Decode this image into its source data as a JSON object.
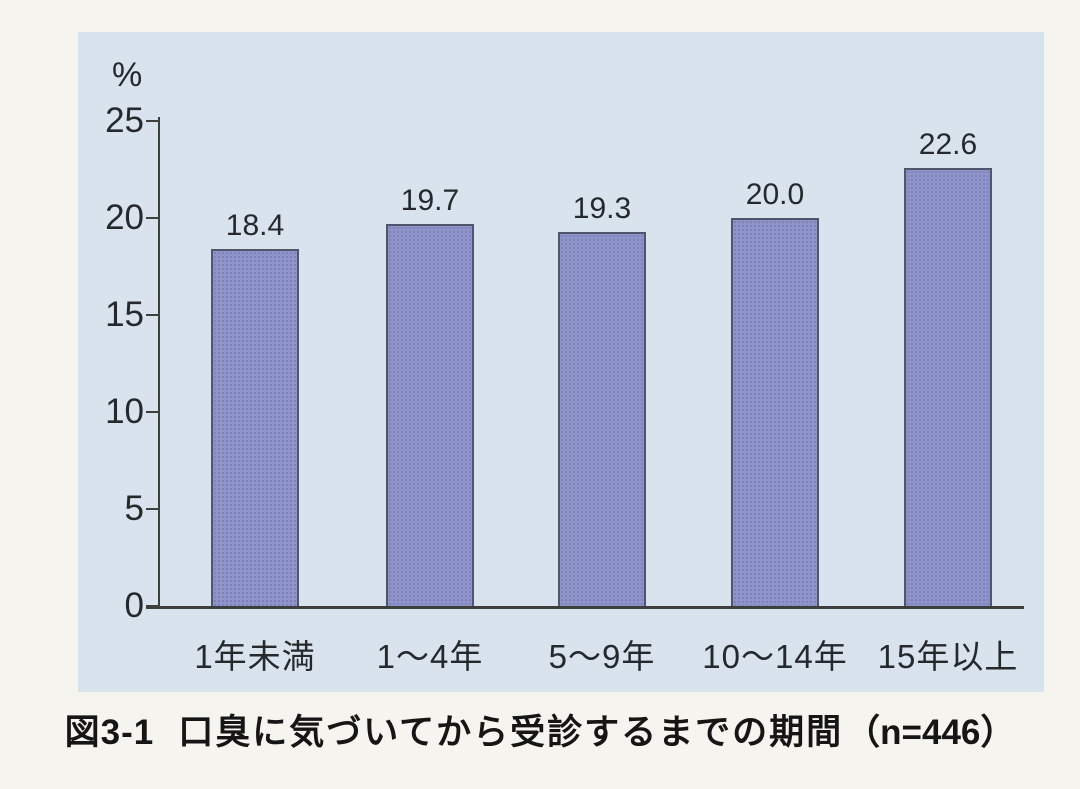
{
  "colors": {
    "page_bg": "#f5f4ef",
    "panel_bg": "#d8e3ee",
    "bar_fill": "#8e94c8",
    "bar_dot": "#7a81ba",
    "bar_border": "#50556b",
    "axis": "#3c3f3c",
    "text": "#26292c",
    "caption_text": "#151515"
  },
  "caption": {
    "figure_label": "図3-1",
    "title": "口臭に気づいてから受診するまでの期間",
    "sample": "（n=446）"
  },
  "chart_data": {
    "type": "bar",
    "title": "口臭に気づいてから受診するまでの期間",
    "sample_size": "n=446",
    "categories": [
      "1年未満",
      "1〜4年",
      "5〜9年",
      "10〜14年",
      "15年以上"
    ],
    "values": [
      18.4,
      19.7,
      19.3,
      20.0,
      22.6
    ],
    "value_labels": [
      "18.4",
      "19.7",
      "19.3",
      "20.0",
      "22.6"
    ],
    "xlabel": "",
    "ylabel": "%",
    "y_ticks": [
      0,
      5,
      10,
      15,
      20,
      25
    ],
    "ylim": [
      0,
      25
    ],
    "grid": "off",
    "legend": "none",
    "bar_texture": "halftone-dots"
  }
}
